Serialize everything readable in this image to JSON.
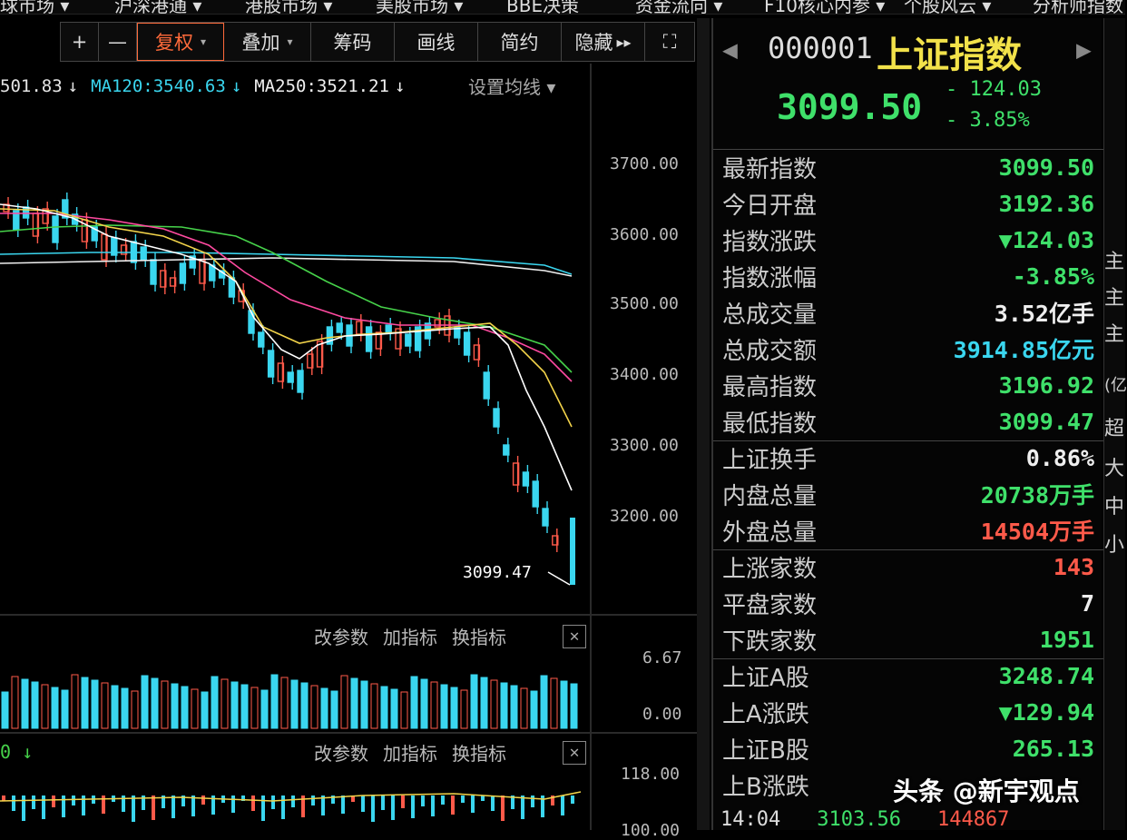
{
  "nav": [
    "球市场 ▾",
    "沪深港通 ▾",
    "港股市场 ▾",
    "美股市场 ▾",
    "BBE决策",
    "资金流向 ▾",
    "F10核心内参 ▾",
    "个股风云 ▾",
    "分析师指数"
  ],
  "toolbar": {
    "plus": "+",
    "minus": "—",
    "fuquan": "复权",
    "caret": "▾",
    "overlay": "叠加",
    "chips": "筹码",
    "draw": "画线",
    "simple": "简约",
    "hide": "隐藏",
    "more": "▸▸",
    "fullscreen": "⛶"
  },
  "ma_legend": [
    {
      "text": "501.83",
      "arrow": "↓",
      "color": "#e6e6e6"
    },
    {
      "text": "MA120:3540.63",
      "arrow": "↓",
      "color": "#3ad6ef"
    },
    {
      "text": "MA250:3521.21",
      "arrow": "↓",
      "color": "#f0f0f0"
    }
  ],
  "ma_settings": "设置均线 ▾",
  "y_axis": [
    "3700.00",
    "3600.00",
    "3500.00",
    "3400.00",
    "3300.00",
    "3200.00"
  ],
  "low_label": "3099.47",
  "volume_panel": {
    "buttons": [
      "改参数",
      "加指标",
      "换指标"
    ],
    "close": "✕",
    "ticks": [
      "6.67",
      "0.00"
    ]
  },
  "macd_panel": {
    "prefix": "0 ↓",
    "buttons": [
      "改参数",
      "加指标",
      "换指标"
    ],
    "close": "✕",
    "ticks": [
      "118.00",
      "100.00"
    ]
  },
  "quote": {
    "code": "000001",
    "name": "上证指数",
    "prev_arrow": "◀",
    "next_arrow": "▶",
    "last": "3099.50",
    "change_abs": "- 124.03",
    "change_pct": "- 3.85%",
    "rows": [
      {
        "label": "最新指数",
        "value": "3099.50",
        "color": "#3fe06a"
      },
      {
        "label": "今日开盘",
        "value": "3192.36",
        "color": "#3fe06a"
      },
      {
        "label": "指数涨跌",
        "value": "▼124.03",
        "color": "#3fe06a"
      },
      {
        "label": "指数涨幅",
        "value": "-3.85%",
        "color": "#3fe06a"
      },
      {
        "label": "总成交量",
        "value": "3.52亿手",
        "color": "#eeeeee"
      },
      {
        "label": "总成交额",
        "value": "3914.85亿元",
        "color": "#3ad6ef"
      },
      {
        "label": "最高指数",
        "value": "3196.92",
        "color": "#3fe06a"
      },
      {
        "label": "最低指数",
        "value": "3099.47",
        "color": "#3fe06a"
      },
      {
        "label": "上证换手",
        "value": "0.86%",
        "color": "#eeeeee"
      },
      {
        "label": "内盘总量",
        "value": "20738万手",
        "color": "#3fe06a"
      },
      {
        "label": "外盘总量",
        "value": "14504万手",
        "color": "#ff5a4a"
      },
      {
        "label": "上涨家数",
        "value": "143",
        "color": "#ff5a4a"
      },
      {
        "label": "平盘家数",
        "value": "7",
        "color": "#eeeeee"
      },
      {
        "label": "下跌家数",
        "value": "1951",
        "color": "#3fe06a"
      },
      {
        "label": "上证A股",
        "value": "3248.74",
        "color": "#3fe06a"
      },
      {
        "label": "上A涨跌",
        "value": "▼129.94",
        "color": "#3fe06a"
      },
      {
        "label": "上证B股",
        "value": "265.13",
        "color": "#3fe06a"
      },
      {
        "label": "上B涨跌",
        "value": "",
        "color": "#3fe06a"
      }
    ]
  },
  "far_right": [
    "主",
    "主",
    "主",
    "(亿",
    "超",
    "大",
    "中",
    "小"
  ],
  "ticker": {
    "time": "14:04",
    "price": "3103.56",
    "volume": "144867"
  },
  "watermark": "头条 @新宇观点",
  "colors": {
    "up": "#ff5a4a",
    "down": "#3ad6ef",
    "green": "#3fe06a",
    "name": "#f2e24a"
  }
}
